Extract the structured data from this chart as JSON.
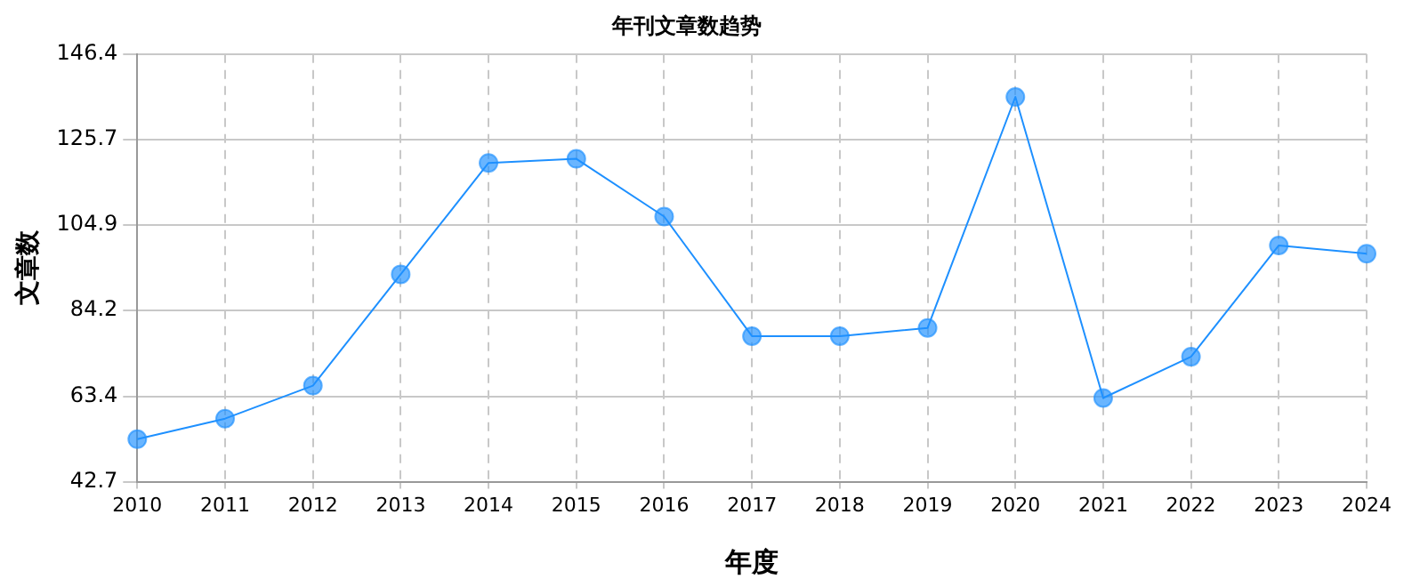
{
  "chart_data": {
    "type": "line",
    "title": "年刊文章数趋势",
    "xlabel": "年度",
    "ylabel": "文章数",
    "categories": [
      "2010",
      "2011",
      "2012",
      "2013",
      "2014",
      "2015",
      "2016",
      "2017",
      "2018",
      "2019",
      "2020",
      "2021",
      "2022",
      "2023",
      "2024"
    ],
    "series": [
      {
        "color": "#1e90ff",
        "values": [
          53,
          58,
          66,
          93,
          120,
          121,
          107,
          78,
          78,
          80,
          136,
          63,
          73,
          100,
          98
        ]
      }
    ],
    "ylim": [
      42.7,
      146.4
    ],
    "yticks": [
      42.7,
      63.4,
      84.2,
      104.9,
      125.7,
      146.4
    ],
    "grid": true,
    "legend": false,
    "marker": "circle",
    "line_style": "solid"
  }
}
